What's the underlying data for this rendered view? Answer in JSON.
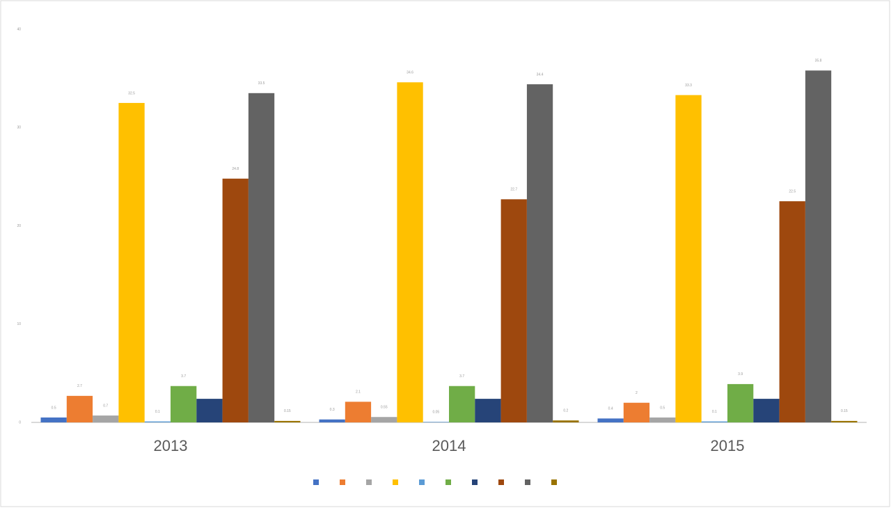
{
  "chart_data": {
    "type": "bar",
    "categories": [
      "2013",
      "2014",
      "2015"
    ],
    "series": [
      {
        "color": "#4472c4",
        "values": [
          0.5,
          0.3,
          0.4
        ]
      },
      {
        "color": "#ed7d31",
        "values": [
          2.7,
          2.1,
          2.0
        ]
      },
      {
        "color": "#a5a5a5",
        "values": [
          0.7,
          0.55,
          0.5
        ]
      },
      {
        "color": "#ffc000",
        "values": [
          32.5,
          34.6,
          33.3
        ]
      },
      {
        "color": "#5b9bd5",
        "values": [
          0.1,
          0.05,
          0.1
        ]
      },
      {
        "color": "#70ad47",
        "values": [
          3.7,
          3.7,
          3.9
        ]
      },
      {
        "color": "#264478",
        "values": [
          2.4,
          2.4,
          2.4
        ]
      },
      {
        "color": "#9e480e",
        "values": [
          24.8,
          22.7,
          22.5
        ]
      },
      {
        "color": "#636363",
        "values": [
          33.5,
          34.4,
          35.8
        ]
      },
      {
        "color": "#997300",
        "values": [
          0.15,
          0.2,
          0.15
        ]
      }
    ],
    "ylim": [
      0,
      40
    ],
    "yticks": [
      0,
      10,
      20,
      30,
      40
    ],
    "grid": false,
    "legend": "bottom"
  }
}
